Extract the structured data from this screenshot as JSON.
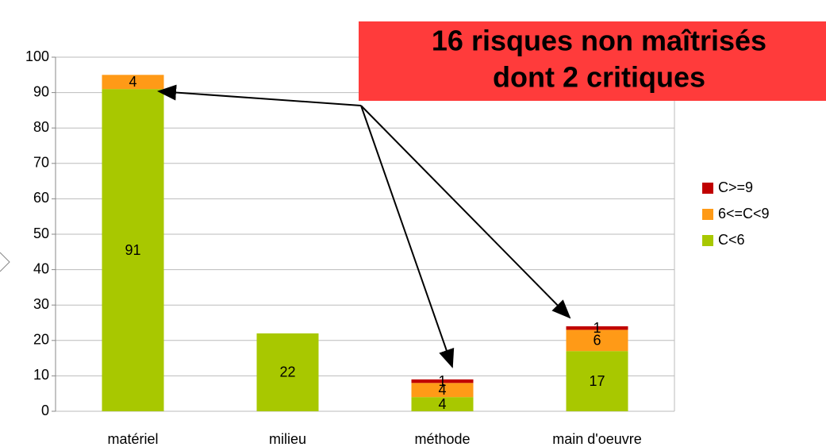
{
  "chart_data": {
    "type": "bar",
    "stacked": true,
    "categories": [
      "matériel",
      "milieu",
      "méthode",
      "main d'oeuvre"
    ],
    "series": [
      {
        "name": "C<6",
        "color": "#a8c800",
        "values": [
          91,
          22,
          4,
          17
        ]
      },
      {
        "name": "6<=C<9",
        "color": "#ff9a17",
        "values": [
          4,
          null,
          4,
          6
        ]
      },
      {
        "name": "C>=9",
        "color": "#c00000",
        "values": [
          null,
          null,
          1,
          1
        ]
      }
    ],
    "ylim": [
      0,
      100
    ],
    "yticks": [
      0,
      10,
      20,
      30,
      40,
      50,
      60,
      70,
      80,
      90,
      100
    ],
    "grid": true,
    "legend": "right",
    "annotation": [
      "16 risques non maîtrisés",
      "dont 2 critiques"
    ]
  }
}
